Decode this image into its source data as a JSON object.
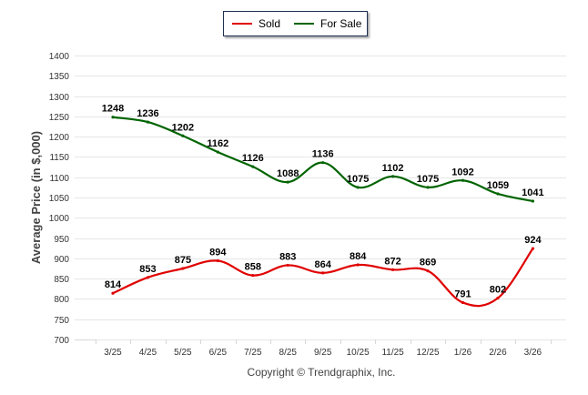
{
  "chart_data": {
    "type": "line",
    "title": "",
    "xlabel": "",
    "ylabel": "Average Price (in $,000)",
    "categories": [
      "3/25",
      "4/25",
      "5/25",
      "6/25",
      "7/25",
      "8/25",
      "9/25",
      "10/25",
      "11/25",
      "12/25",
      "1/26",
      "2/26",
      "3/26"
    ],
    "ylim": [
      700,
      1400
    ],
    "yticks": [
      700,
      750,
      800,
      850,
      900,
      950,
      1000,
      1050,
      1100,
      1150,
      1200,
      1250,
      1300,
      1350,
      1400
    ],
    "grid": true,
    "legend_position": "top-center",
    "series": [
      {
        "name": "Sold",
        "color": "#e00000",
        "values": [
          814,
          853,
          875,
          894,
          858,
          883,
          864,
          884,
          872,
          869,
          791,
          802,
          924
        ]
      },
      {
        "name": "For Sale",
        "color": "#006400",
        "values": [
          1248,
          1236,
          1202,
          1162,
          1126,
          1088,
          1136,
          1075,
          1102,
          1075,
          1092,
          1059,
          1041
        ]
      }
    ],
    "footer": "Copyright © Trendgraphix, Inc."
  }
}
